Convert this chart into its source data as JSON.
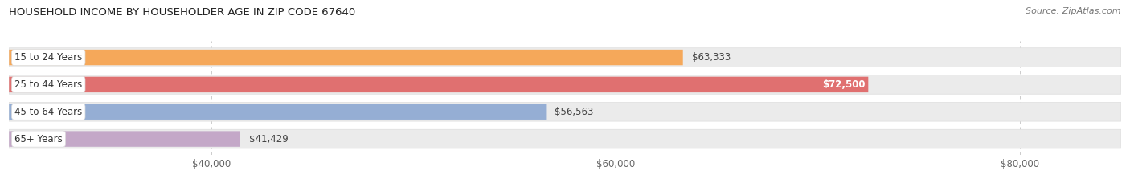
{
  "title": "HOUSEHOLD INCOME BY HOUSEHOLDER AGE IN ZIP CODE 67640",
  "source": "Source: ZipAtlas.com",
  "categories": [
    "15 to 24 Years",
    "25 to 44 Years",
    "45 to 64 Years",
    "65+ Years"
  ],
  "values": [
    63333,
    72500,
    56563,
    41429
  ],
  "bar_colors": [
    "#F5A85A",
    "#E07070",
    "#95AED4",
    "#C4A8C8"
  ],
  "bar_bg_color": "#EBEBEB",
  "bar_bg_border_color": "#DEDEDE",
  "label_inside": [
    false,
    true,
    false,
    false
  ],
  "value_labels": [
    "$63,333",
    "$72,500",
    "$56,563",
    "$41,429"
  ],
  "xmin": 30000,
  "xmax": 85000,
  "xticks": [
    40000,
    60000,
    80000
  ],
  "xtick_labels": [
    "$40,000",
    "$60,000",
    "$80,000"
  ],
  "figwidth": 14.06,
  "figheight": 2.33,
  "dpi": 100,
  "bar_height": 0.7,
  "background_color": "#FFFFFF",
  "title_fontsize": 9.5,
  "source_fontsize": 8,
  "tick_fontsize": 8.5,
  "cat_fontsize": 8.5,
  "val_fontsize": 8.5
}
